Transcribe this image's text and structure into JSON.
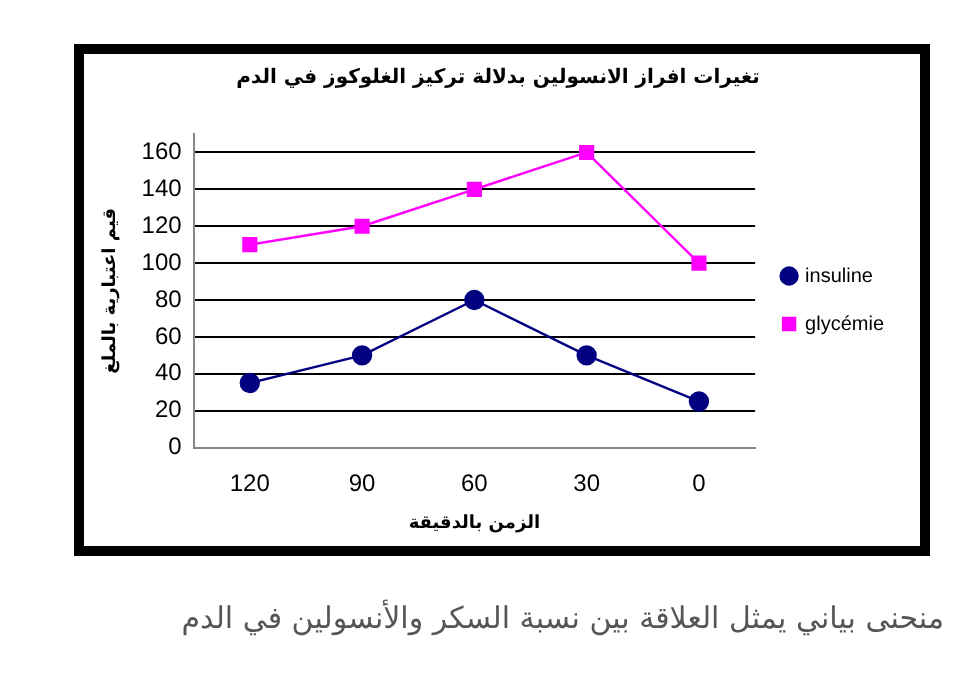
{
  "chart_data": {
    "type": "line",
    "title": "تغيرات افراز الانسولين بدلالة تركيز الغلوكوز في الدم",
    "xlabel": "الزمن بالدقيقة",
    "ylabel": "قيم اعتبارية بالملغ",
    "categories": [
      "120",
      "90",
      "60",
      "30",
      "0"
    ],
    "series": [
      {
        "name": "insuline",
        "color": "#000080",
        "marker": "circle",
        "values": [
          35,
          50,
          80,
          50,
          25
        ]
      },
      {
        "name": "glycémie",
        "color": "#ff00ff",
        "marker": "square",
        "values": [
          110,
          120,
          140,
          160,
          100
        ]
      }
    ],
    "ylim": [
      0,
      170
    ],
    "yticks": [
      0,
      20,
      40,
      60,
      80,
      100,
      120,
      140,
      160
    ],
    "grid": "y",
    "legend": "right",
    "annotations": [
      "منحنى بياني يمثل العلاقة بين نسبة السكر والأنسولين في الدم"
    ]
  }
}
